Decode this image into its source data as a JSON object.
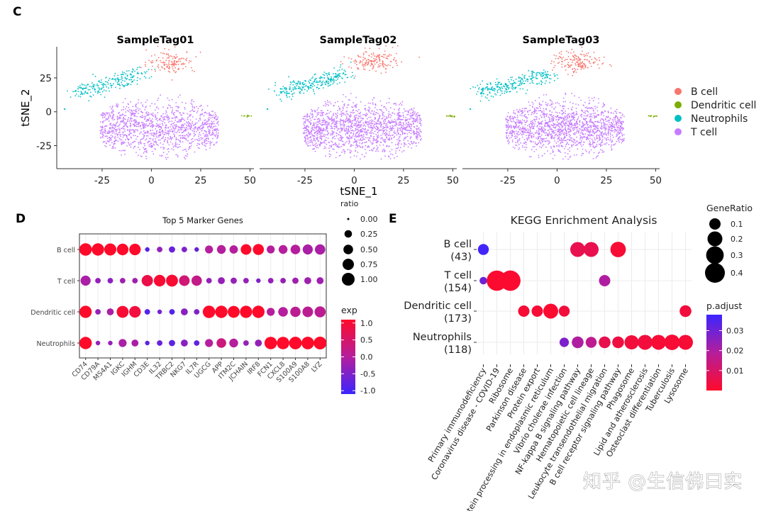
{
  "panels": {
    "c": {
      "letter": "C"
    },
    "d": {
      "letter": "D"
    },
    "e": {
      "letter": "E"
    }
  },
  "watermark": "知乎 @生信佛曰实",
  "chart_data": [
    {
      "id": "tsne",
      "type": "scatter",
      "facets": [
        "SampleTag01",
        "SampleTag02",
        "SampleTag03"
      ],
      "xlabel": "tSNE_1",
      "ylabel": "tSNE_2",
      "xticks": [
        -25,
        0,
        25,
        50
      ],
      "yticks": [
        25,
        0,
        -25
      ],
      "xlim": [
        -48,
        52
      ],
      "ylim": [
        -42,
        48
      ],
      "legend_position": "right",
      "series": [
        {
          "name": "B cell",
          "color": "#F8766D",
          "center": [
            10,
            37
          ],
          "spread": [
            6,
            4
          ],
          "n": 160
        },
        {
          "name": "Dendritic cell",
          "color": "#7CAE00",
          "center": [
            49,
            -3
          ],
          "spread": [
            1.2,
            0.4
          ],
          "n": 12
        },
        {
          "name": "Neutrophils",
          "color": "#00BFC4",
          "center": [
            -20,
            21
          ],
          "spread": [
            12,
            5
          ],
          "n": 260
        },
        {
          "name": "T cell",
          "color": "#C77CFF",
          "center": [
            4,
            -12
          ],
          "spread": [
            20,
            13
          ],
          "n": 1500
        }
      ]
    },
    {
      "id": "marker-dotplot",
      "type": "scatter",
      "title": "Top 5 Marker Genes",
      "genes": [
        "CD74",
        "CD79A",
        "MS4A1",
        "IGKC",
        "IGHM",
        "CD3E",
        "IL32",
        "TRBC2",
        "NKG7",
        "IL7R",
        "UGCG",
        "APP",
        "ITM2C",
        "JCHAIN",
        "IRF8",
        "FCN1",
        "CXCL8",
        "S100A9",
        "S100A8",
        "LYZ"
      ],
      "cell_types": [
        "B cell",
        "T cell",
        "Dendritic cell",
        "Neutrophils"
      ],
      "ratio": [
        [
          0.95,
          0.92,
          0.88,
          0.8,
          0.78,
          0.05,
          0.1,
          0.15,
          0.1,
          0.05,
          0.3,
          0.4,
          0.35,
          0.65,
          0.7,
          0.3,
          0.4,
          0.5,
          0.55,
          0.6
        ],
        [
          0.55,
          0.1,
          0.1,
          0.1,
          0.1,
          0.75,
          0.8,
          0.85,
          0.65,
          0.6,
          0.1,
          0.2,
          0.15,
          0.1,
          0.05,
          0.1,
          0.1,
          0.15,
          0.2,
          0.2
        ],
        [
          0.9,
          0.1,
          0.2,
          0.85,
          0.8,
          0.1,
          0.05,
          0.1,
          0.2,
          0.1,
          0.95,
          0.92,
          0.85,
          0.9,
          0.92,
          0.3,
          0.5,
          0.6,
          0.65,
          0.7
        ],
        [
          0.92,
          0.05,
          0.05,
          0.3,
          0.2,
          0.05,
          0.1,
          0.15,
          0.2,
          0.1,
          0.3,
          0.5,
          0.4,
          0.1,
          0.2,
          0.95,
          0.95,
          0.98,
          0.98,
          1.0
        ]
      ],
      "exp": [
        [
          1.2,
          1.3,
          1.4,
          1.2,
          1.2,
          -0.9,
          -0.3,
          -0.7,
          -0.5,
          -0.7,
          0.0,
          0.0,
          0.0,
          1.2,
          1.3,
          0.0,
          0.0,
          0.0,
          -0.1,
          -0.1
        ],
        [
          -0.1,
          -0.3,
          -0.4,
          -0.2,
          -0.2,
          0.8,
          1.0,
          1.0,
          0.4,
          0.2,
          -0.3,
          -0.3,
          -0.3,
          -0.3,
          -0.5,
          -0.3,
          -0.3,
          -0.2,
          -0.2,
          -0.2
        ],
        [
          1.1,
          -0.3,
          -0.1,
          1.0,
          0.9,
          -0.9,
          -0.6,
          -0.9,
          -0.4,
          -0.5,
          1.4,
          1.2,
          1.2,
          1.2,
          1.1,
          0.0,
          0.0,
          0.1,
          0.1,
          0.1
        ],
        [
          1.2,
          -0.3,
          -0.3,
          -0.1,
          -0.1,
          -0.8,
          -0.7,
          -0.8,
          -0.4,
          -0.8,
          0.0,
          0.3,
          0.0,
          -0.3,
          -0.3,
          1.4,
          1.4,
          1.5,
          1.5,
          1.5
        ]
      ],
      "size_legend": {
        "title": "ratio",
        "values": [
          0.0,
          0.25,
          0.5,
          0.75,
          1.0
        ],
        "labels": [
          "0.00",
          "0.25",
          "0.50",
          "0.75",
          "1.00"
        ]
      },
      "color_legend": {
        "title": "exp",
        "labels": [
          "1.0",
          "0.5",
          "0.0",
          "-0.5",
          "-1.0"
        ],
        "values": [
          1.0,
          0.5,
          0.0,
          -0.5,
          -1.0
        ],
        "range": [
          -1.1,
          1.1
        ],
        "low": "#3B25FF",
        "high": "#FF0A2A"
      }
    },
    {
      "id": "kegg-dotplot",
      "type": "scatter",
      "title": "KEGG Enrichment Analysis",
      "rows": [
        {
          "label": "B cell",
          "count": "(43)"
        },
        {
          "label": "T cell",
          "count": "(154)"
        },
        {
          "label": "Dendritic cell",
          "count": "(173)"
        },
        {
          "label": "Neutrophils",
          "count": "(118)"
        }
      ],
      "columns": [
        "Primary immunodeficiency",
        "Coronavirus disease - COVID-19",
        "Ribosome",
        "Parkinson disease",
        "Protein export",
        "Protein processing in endoplasmic reticulum",
        "Vibrio cholerae infection",
        "NF-kappa B signaling pathway",
        "Hematopoietic cell lineage",
        "Leukocyte transendothelial migration",
        "B cell receptor signaling pathway",
        "Phagosome",
        "Lipid and atherosclerosis",
        "Osteoclast differentiation",
        "Tuberculosis",
        "Lysosome"
      ],
      "points": [
        {
          "row": 0,
          "col": 0,
          "gene_ratio": 0.09,
          "p_adjust": 0.037
        },
        {
          "row": 0,
          "col": 7,
          "gene_ratio": 0.2,
          "p_adjust": 0.006
        },
        {
          "row": 0,
          "col": 8,
          "gene_ratio": 0.2,
          "p_adjust": 0.006
        },
        {
          "row": 0,
          "col": 10,
          "gene_ratio": 0.22,
          "p_adjust": 0.002
        },
        {
          "row": 1,
          "col": 0,
          "gene_ratio": 0.03,
          "p_adjust": 0.03
        },
        {
          "row": 1,
          "col": 1,
          "gene_ratio": 0.42,
          "p_adjust": 0.001
        },
        {
          "row": 1,
          "col": 2,
          "gene_ratio": 0.43,
          "p_adjust": 0.001
        },
        {
          "row": 1,
          "col": 9,
          "gene_ratio": 0.1,
          "p_adjust": 0.02
        },
        {
          "row": 2,
          "col": 3,
          "gene_ratio": 0.1,
          "p_adjust": 0.002
        },
        {
          "row": 2,
          "col": 4,
          "gene_ratio": 0.1,
          "p_adjust": 0.002
        },
        {
          "row": 2,
          "col": 5,
          "gene_ratio": 0.2,
          "p_adjust": 0.001
        },
        {
          "row": 2,
          "col": 6,
          "gene_ratio": 0.09,
          "p_adjust": 0.003
        },
        {
          "row": 2,
          "col": 15,
          "gene_ratio": 0.11,
          "p_adjust": 0.003
        },
        {
          "row": 3,
          "col": 6,
          "gene_ratio": 0.06,
          "p_adjust": 0.028
        },
        {
          "row": 3,
          "col": 7,
          "gene_ratio": 0.11,
          "p_adjust": 0.02
        },
        {
          "row": 3,
          "col": 8,
          "gene_ratio": 0.09,
          "p_adjust": 0.017
        },
        {
          "row": 3,
          "col": 9,
          "gene_ratio": 0.11,
          "p_adjust": 0.006
        },
        {
          "row": 3,
          "col": 10,
          "gene_ratio": 0.11,
          "p_adjust": 0.004
        },
        {
          "row": 3,
          "col": 11,
          "gene_ratio": 0.18,
          "p_adjust": 0.003
        },
        {
          "row": 3,
          "col": 12,
          "gene_ratio": 0.2,
          "p_adjust": 0.003
        },
        {
          "row": 3,
          "col": 13,
          "gene_ratio": 0.2,
          "p_adjust": 0.002
        },
        {
          "row": 3,
          "col": 14,
          "gene_ratio": 0.22,
          "p_adjust": 0.002
        },
        {
          "row": 3,
          "col": 15,
          "gene_ratio": 0.2,
          "p_adjust": 0.002
        }
      ],
      "size_legend": {
        "title": "GeneRatio",
        "values": [
          0.1,
          0.2,
          0.3,
          0.4
        ],
        "labels": [
          "0.1",
          "0.2",
          "0.3",
          "0.4"
        ]
      },
      "color_legend": {
        "title": "p.adjust",
        "labels": [
          "0.03",
          "0.02",
          "0.01"
        ],
        "values": [
          0.03,
          0.02,
          0.01
        ],
        "range": [
          0.0,
          0.038
        ],
        "low_p_color": "#FF0A2A",
        "high_p_color": "#3B25FF"
      }
    }
  ]
}
